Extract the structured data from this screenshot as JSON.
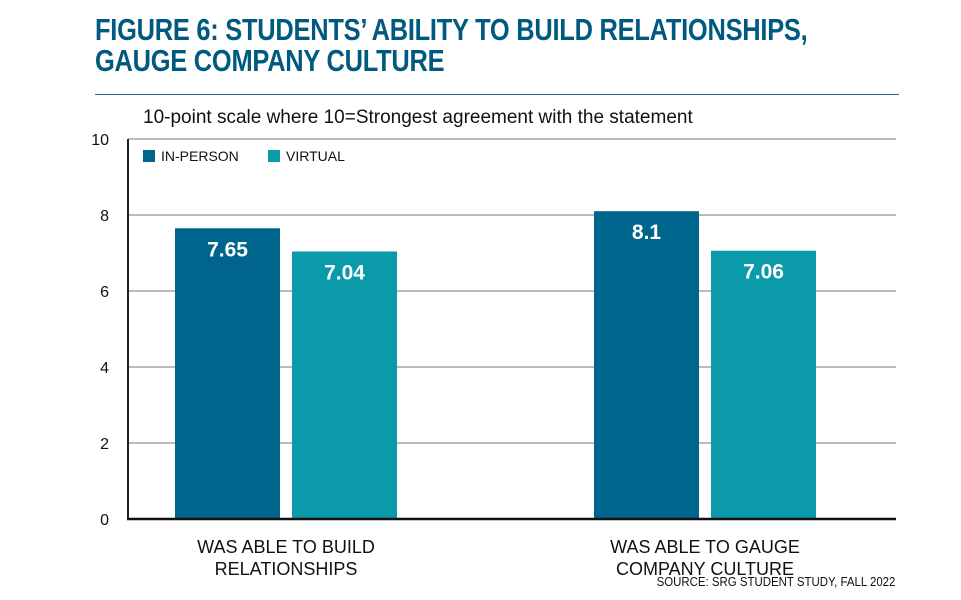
{
  "header": {
    "title_line1": "FIGURE 6: STUDENTS’ ABILITY TO BUILD RELATIONSHIPS,",
    "title_line2": "GAUGE COMPANY CULTURE",
    "subtitle": "10-point scale where 10=Strongest agreement with the statement"
  },
  "footer": {
    "source": "SOURCE: SRG STUDENT STUDY, FALL 2022"
  },
  "colors": {
    "in_person": "#00658c",
    "virtual": "#0b9aaa",
    "title": "#00597f"
  },
  "chart_data": {
    "type": "bar",
    "title": "FIGURE 6: STUDENTS’ ABILITY TO BUILD RELATIONSHIPS, GAUGE COMPANY CULTURE",
    "subtitle": "10-point scale where 10=Strongest agreement with the statement",
    "categories": [
      [
        "WAS ABLE TO BUILD",
        "RELATIONSHIPS"
      ],
      [
        "WAS ABLE TO GAUGE",
        "COMPANY CULTURE"
      ]
    ],
    "series": [
      {
        "name": "IN-PERSON",
        "values": [
          7.65,
          8.1
        ],
        "labels": [
          "7.65",
          "8.1"
        ]
      },
      {
        "name": "VIRTUAL",
        "values": [
          7.04,
          7.06
        ],
        "labels": [
          "7.04",
          "7.06"
        ]
      }
    ],
    "ylim": [
      0,
      10
    ],
    "yticks": [
      "0",
      "2",
      "4",
      "6",
      "8",
      "10"
    ],
    "grid": true,
    "legend": "top-left"
  }
}
